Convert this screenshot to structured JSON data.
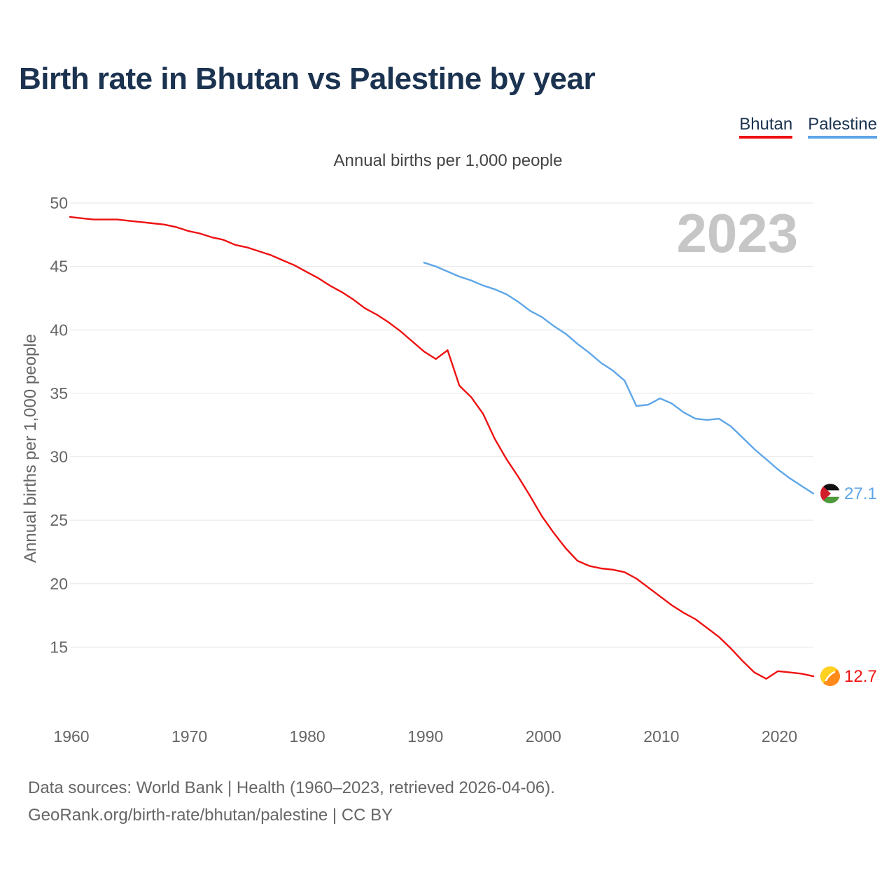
{
  "title": "Birth rate in Bhutan vs Palestine by year",
  "subtitle": "Annual births per 1,000 people",
  "source_line1": "Data sources: World Bank | Health (1960–2023, retrieved 2026-04-06).",
  "source_line2": "GeoRank.org/birth-rate/bhutan/palestine | CC BY",
  "legend": [
    {
      "label": "Bhutan",
      "color": "#ee1111"
    },
    {
      "label": "Palestine",
      "color": "#5ea6e8"
    }
  ],
  "chart_data": {
    "type": "line",
    "title": "Birth rate in Bhutan vs Palestine by year",
    "ylabel": "Annual births per 1,000 people",
    "xlabel": "",
    "xlim": [
      1960,
      2023
    ],
    "ylim": [
      10,
      50
    ],
    "x_ticks": [
      1960,
      1970,
      1980,
      1990,
      2000,
      2010,
      2020
    ],
    "y_ticks": [
      15,
      20,
      25,
      30,
      35,
      40,
      45,
      50
    ],
    "grid": true,
    "highlight_year": "2023",
    "series": [
      {
        "name": "Bhutan",
        "color": "#ee1111",
        "end_label": "12.7",
        "flag": "bhutan-flag-icon",
        "x": [
          1960,
          1961,
          1962,
          1963,
          1964,
          1965,
          1966,
          1967,
          1968,
          1969,
          1970,
          1971,
          1972,
          1973,
          1974,
          1975,
          1976,
          1977,
          1978,
          1979,
          1980,
          1981,
          1982,
          1983,
          1984,
          1985,
          1986,
          1987,
          1988,
          1989,
          1990,
          1991,
          1992,
          1993,
          1994,
          1995,
          1996,
          1997,
          1998,
          1999,
          2000,
          2001,
          2002,
          2003,
          2004,
          2005,
          2006,
          2007,
          2008,
          2009,
          2010,
          2011,
          2012,
          2013,
          2014,
          2015,
          2016,
          2017,
          2018,
          2019,
          2020,
          2021,
          2022,
          2023
        ],
        "values": [
          48.9,
          48.8,
          48.7,
          48.7,
          48.7,
          48.6,
          48.5,
          48.4,
          48.3,
          48.1,
          47.8,
          47.6,
          47.3,
          47.1,
          46.7,
          46.5,
          46.2,
          45.9,
          45.5,
          45.1,
          44.6,
          44.1,
          43.5,
          43.0,
          42.4,
          41.7,
          41.2,
          40.6,
          39.9,
          39.1,
          38.3,
          37.7,
          38.4,
          35.6,
          34.7,
          33.4,
          31.4,
          29.8,
          28.4,
          26.9,
          25.3,
          24.0,
          22.8,
          21.8,
          21.4,
          21.2,
          21.1,
          20.9,
          20.4,
          19.7,
          19.0,
          18.3,
          17.7,
          17.2,
          16.5,
          15.8,
          14.9,
          13.9,
          13.0,
          12.5,
          13.1,
          13.0,
          12.9,
          12.7
        ]
      },
      {
        "name": "Palestine",
        "color": "#5ea6e8",
        "end_label": "27.1",
        "flag": "palestine-flag-icon",
        "x": [
          1990,
          1991,
          1992,
          1993,
          1994,
          1995,
          1996,
          1997,
          1998,
          1999,
          2000,
          2001,
          2002,
          2003,
          2004,
          2005,
          2006,
          2007,
          2008,
          2009,
          2010,
          2011,
          2012,
          2013,
          2014,
          2015,
          2016,
          2017,
          2018,
          2019,
          2020,
          2021,
          2022,
          2023
        ],
        "values": [
          45.3,
          45.0,
          44.6,
          44.2,
          43.9,
          43.5,
          43.2,
          42.8,
          42.2,
          41.5,
          41.0,
          40.3,
          39.7,
          38.9,
          38.2,
          37.4,
          36.8,
          36.0,
          34.0,
          34.1,
          34.6,
          34.2,
          33.5,
          33.0,
          32.9,
          33.0,
          32.4,
          31.5,
          30.6,
          29.8,
          29.0,
          28.3,
          27.7,
          27.1
        ]
      }
    ]
  }
}
